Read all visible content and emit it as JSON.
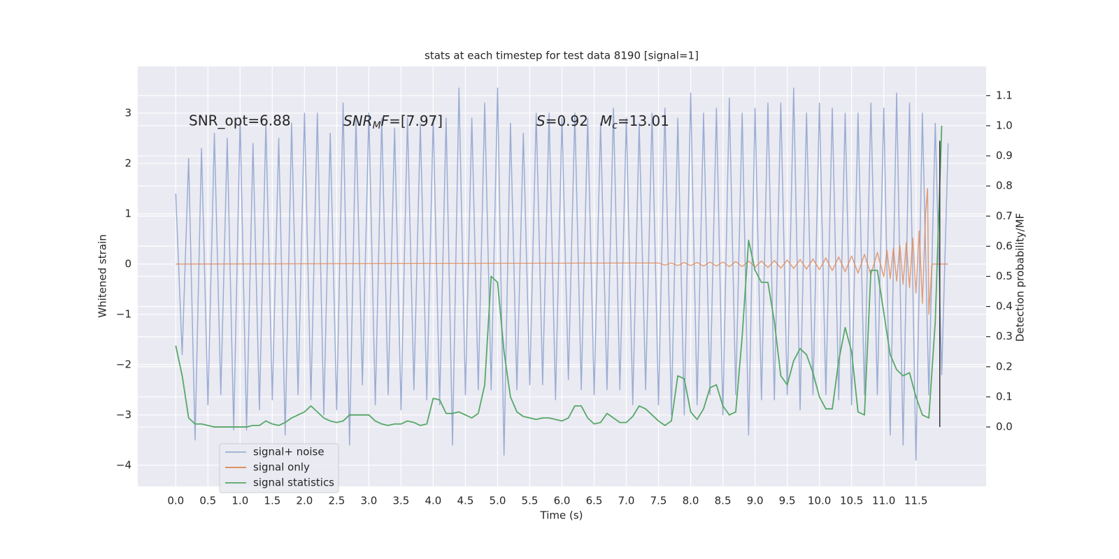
{
  "chart_data": {
    "type": "line",
    "title": "stats at each timestep for test data 8190 [signal=1]",
    "xlabel": "Time (s)",
    "ylabel": "Whitened strain",
    "y2label": "Detection probability/MF",
    "xlim": [
      -0.59,
      12.59
    ],
    "ylim": [
      -4.42,
      3.93
    ],
    "y2lim": [
      -0.197,
      1.197
    ],
    "xticks": [
      {
        "value": 0,
        "label": "0.0"
      },
      {
        "value": 0.5,
        "label": "0.5"
      },
      {
        "value": 1,
        "label": "1.0"
      },
      {
        "value": 1.5,
        "label": "1.5"
      },
      {
        "value": 2,
        "label": "2.0"
      },
      {
        "value": 2.5,
        "label": "2.5"
      },
      {
        "value": 3,
        "label": "3.0"
      },
      {
        "value": 3.5,
        "label": "3.5"
      },
      {
        "value": 4,
        "label": "4.0"
      },
      {
        "value": 4.5,
        "label": "4.5"
      },
      {
        "value": 5,
        "label": "5.0"
      },
      {
        "value": 5.5,
        "label": "5.5"
      },
      {
        "value": 6,
        "label": "6.0"
      },
      {
        "value": 6.5,
        "label": "6.5"
      },
      {
        "value": 7,
        "label": "7.0"
      },
      {
        "value": 7.5,
        "label": "7.5"
      },
      {
        "value": 8,
        "label": "8.0"
      },
      {
        "value": 8.5,
        "label": "8.5"
      },
      {
        "value": 9,
        "label": "9.0"
      },
      {
        "value": 9.5,
        "label": "9.5"
      },
      {
        "value": 10,
        "label": "10.0"
      },
      {
        "value": 10.5,
        "label": "10.5"
      },
      {
        "value": 11,
        "label": "11.0"
      },
      {
        "value": 11.5,
        "label": "11.5"
      }
    ],
    "yticks": [
      {
        "value": -4,
        "label": "−4"
      },
      {
        "value": -3,
        "label": "−3"
      },
      {
        "value": -2,
        "label": "−2"
      },
      {
        "value": -1,
        "label": "−1"
      },
      0,
      1,
      2,
      3
    ],
    "y2ticks": [
      {
        "value": 0,
        "label": "0.0"
      },
      {
        "value": 0.1,
        "label": "0.1"
      },
      {
        "value": 0.2,
        "label": "0.2"
      },
      {
        "value": 0.3,
        "label": "0.3"
      },
      {
        "value": 0.4,
        "label": "0.4"
      },
      {
        "value": 0.5,
        "label": "0.5"
      },
      {
        "value": 0.6,
        "label": "0.6"
      },
      {
        "value": 0.7,
        "label": "0.7"
      },
      {
        "value": 0.8,
        "label": "0.8"
      },
      {
        "value": 0.9,
        "label": "0.9"
      },
      {
        "value": 1,
        "label": "1.0"
      },
      {
        "value": 1.1,
        "label": "1.1"
      }
    ],
    "grid": true,
    "legend": "lower left",
    "annotations": [
      {
        "text": "SNR_opt=6.88"
      },
      {
        "math": "SNR",
        "sub": "M",
        "math2": "F",
        "text": "=[7.97]"
      },
      {
        "math": "S",
        "text": "=0.92"
      },
      {
        "math": "M",
        "sub": "c",
        "text": "=13.01"
      }
    ],
    "series": [
      {
        "name": "signal+ noise",
        "color": "#9badd3",
        "x": [
          0,
          0.1,
          0.2,
          0.3,
          0.4,
          0.5,
          0.6,
          0.7,
          0.8,
          0.9,
          1,
          1.1,
          1.2,
          1.3,
          1.4,
          1.5,
          1.6,
          1.7,
          1.8,
          1.9,
          2,
          2.1,
          2.2,
          2.3,
          2.4,
          2.5,
          2.6,
          2.7,
          2.8,
          2.9,
          3,
          3.1,
          3.2,
          3.3,
          3.4,
          3.5,
          3.6,
          3.7,
          3.8,
          3.9,
          4,
          4.1,
          4.2,
          4.3,
          4.4,
          4.5,
          4.6,
          4.7,
          4.8,
          4.9,
          5,
          5.1,
          5.2,
          5.3,
          5.4,
          5.5,
          5.6,
          5.7,
          5.8,
          5.9,
          6,
          6.1,
          6.2,
          6.3,
          6.4,
          6.5,
          6.6,
          6.7,
          6.8,
          6.9,
          7,
          7.1,
          7.2,
          7.3,
          7.4,
          7.5,
          7.6,
          7.7,
          7.8,
          7.9,
          8,
          8.1,
          8.2,
          8.3,
          8.4,
          8.5,
          8.6,
          8.7,
          8.8,
          8.9,
          9,
          9.1,
          9.2,
          9.3,
          9.4,
          9.5,
          9.6,
          9.7,
          9.8,
          9.9,
          10,
          10.1,
          10.2,
          10.3,
          10.4,
          10.5,
          10.6,
          10.7,
          10.8,
          10.9,
          11,
          11.1,
          11.2,
          11.3,
          11.4,
          11.5,
          11.6,
          11.7,
          11.8,
          11.9,
          12
        ],
        "values": [
          1.4,
          -1.8,
          2.1,
          -3.5,
          2.3,
          -2.8,
          2.6,
          -2.6,
          2.5,
          -3.3,
          2.9,
          -3.3,
          2.4,
          -2.9,
          2.8,
          -2.7,
          2.5,
          -3.4,
          2.8,
          -2.6,
          3.0,
          -2.7,
          3.0,
          -3.0,
          2.6,
          -2.9,
          3.2,
          -3.6,
          2.9,
          -2.4,
          3.0,
          -2.8,
          2.9,
          -2.6,
          2.7,
          -2.9,
          2.9,
          -2.5,
          2.8,
          -2.7,
          2.9,
          -2.8,
          2.9,
          -3.6,
          3.5,
          -2.6,
          2.9,
          -2.5,
          3.2,
          -2.5,
          3.5,
          -3.8,
          2.8,
          -2.5,
          2.6,
          -2.4,
          3.0,
          -2.4,
          3.0,
          -2.7,
          2.9,
          -2.3,
          3.0,
          -2.5,
          2.9,
          -2.6,
          2.8,
          -2.5,
          3.1,
          -2.5,
          2.9,
          -2.8,
          2.8,
          -2.5,
          3.0,
          -2.8,
          3.1,
          -3.0,
          2.9,
          -3.0,
          3.4,
          -2.8,
          3.0,
          -2.6,
          3.1,
          -3.0,
          3.3,
          -2.6,
          3.0,
          -3.4,
          3.1,
          -2.7,
          3.2,
          -2.7,
          3.2,
          -2.6,
          3.5,
          -2.9,
          3.0,
          -2.6,
          3.2,
          -2.6,
          3.1,
          -2.7,
          3.0,
          -2.8,
          3.0,
          -2.6,
          3.2,
          -2.6,
          3.1,
          -3.4,
          3.4,
          -3.6,
          3.2,
          -3.9,
          3.0,
          -2.6,
          2.8,
          -2.2,
          2.4
        ]
      },
      {
        "name": "signal only",
        "color": "#dd8452",
        "x": [
          0,
          7.5,
          7.6,
          7.7,
          7.8,
          7.9,
          8,
          8.1,
          8.2,
          8.3,
          8.4,
          8.5,
          8.6,
          8.7,
          8.8,
          8.9,
          9,
          9.1,
          9.2,
          9.3,
          9.4,
          9.5,
          9.6,
          9.7,
          9.8,
          9.9,
          10,
          10.1,
          10.2,
          10.3,
          10.4,
          10.5,
          10.6,
          10.7,
          10.8,
          10.9,
          11,
          11.05,
          11.1,
          11.15,
          11.2,
          11.25,
          11.3,
          11.35,
          11.4,
          11.45,
          11.5,
          11.55,
          11.6,
          11.65,
          11.68,
          11.7,
          11.75,
          12
        ],
        "values": [
          0,
          0.02,
          -0.02,
          0.02,
          -0.03,
          0.03,
          -0.03,
          0.03,
          -0.04,
          0.04,
          -0.04,
          0.04,
          -0.05,
          0.05,
          -0.05,
          0.06,
          -0.06,
          0.06,
          -0.07,
          0.07,
          -0.08,
          0.08,
          -0.09,
          0.09,
          -0.1,
          0.1,
          -0.11,
          0.12,
          -0.13,
          0.14,
          -0.15,
          0.16,
          -0.18,
          0.19,
          -0.21,
          0.23,
          -0.25,
          0.27,
          -0.29,
          0.31,
          -0.34,
          0.37,
          -0.4,
          0.43,
          -0.47,
          0.52,
          -0.58,
          0.66,
          -0.78,
          1.0,
          1.5,
          -1.0,
          0,
          0
        ]
      },
      {
        "name": "signal statistics",
        "color": "#55a868",
        "axis": "y2",
        "x": [
          0,
          0.1,
          0.2,
          0.3,
          0.4,
          0.5,
          0.6,
          0.7,
          0.8,
          0.9,
          1,
          1.1,
          1.2,
          1.3,
          1.4,
          1.5,
          1.6,
          1.7,
          1.8,
          1.9,
          2,
          2.1,
          2.2,
          2.3,
          2.4,
          2.5,
          2.6,
          2.7,
          2.8,
          2.9,
          3,
          3.1,
          3.2,
          3.3,
          3.4,
          3.5,
          3.6,
          3.7,
          3.8,
          3.9,
          4,
          4.1,
          4.2,
          4.3,
          4.4,
          4.5,
          4.6,
          4.7,
          4.8,
          4.9,
          5,
          5.1,
          5.2,
          5.3,
          5.4,
          5.5,
          5.6,
          5.7,
          5.8,
          5.9,
          6,
          6.1,
          6.2,
          6.3,
          6.4,
          6.5,
          6.6,
          6.7,
          6.8,
          6.9,
          7,
          7.1,
          7.2,
          7.3,
          7.4,
          7.5,
          7.6,
          7.7,
          7.8,
          7.9,
          8,
          8.1,
          8.2,
          8.3,
          8.4,
          8.5,
          8.6,
          8.7,
          8.8,
          8.9,
          9,
          9.1,
          9.2,
          9.3,
          9.4,
          9.5,
          9.6,
          9.7,
          9.8,
          9.9,
          10,
          10.1,
          10.2,
          10.3,
          10.4,
          10.5,
          10.6,
          10.7,
          10.8,
          10.9,
          11,
          11.1,
          11.2,
          11.3,
          11.4,
          11.5,
          11.6,
          11.7,
          11.8,
          11.9
        ],
        "values": [
          0.27,
          0.17,
          0.03,
          0.01,
          0.01,
          0.005,
          0,
          0,
          0,
          0,
          0,
          0,
          0.005,
          0.005,
          0.02,
          0.01,
          0.005,
          0.015,
          0.03,
          0.04,
          0.05,
          0.07,
          0.05,
          0.03,
          0.02,
          0.015,
          0.02,
          0.04,
          0.04,
          0.04,
          0.04,
          0.02,
          0.01,
          0.005,
          0.01,
          0.01,
          0.02,
          0.015,
          0.005,
          0.01,
          0.095,
          0.09,
          0.045,
          0.045,
          0.05,
          0.04,
          0.03,
          0.045,
          0.14,
          0.5,
          0.48,
          0.25,
          0.1,
          0.05,
          0.035,
          0.03,
          0.025,
          0.03,
          0.03,
          0.025,
          0.02,
          0.03,
          0.07,
          0.07,
          0.03,
          0.01,
          0.015,
          0.045,
          0.03,
          0.015,
          0.015,
          0.035,
          0.07,
          0.06,
          0.04,
          0.02,
          0.005,
          0.02,
          0.17,
          0.16,
          0.05,
          0.025,
          0.06,
          0.13,
          0.14,
          0.07,
          0.04,
          0.05,
          0.3,
          0.62,
          0.52,
          0.48,
          0.48,
          0.35,
          0.17,
          0.14,
          0.22,
          0.26,
          0.24,
          0.18,
          0.1,
          0.06,
          0.06,
          0.22,
          0.33,
          0.25,
          0.05,
          0.04,
          0.52,
          0.52,
          0.38,
          0.24,
          0.19,
          0.17,
          0.18,
          0.1,
          0.04,
          0.03,
          0.35,
          1.0
        ]
      }
    ],
    "vline": {
      "x": 11.87,
      "y2": [
        0,
        0.95
      ],
      "color": "#333333"
    }
  }
}
